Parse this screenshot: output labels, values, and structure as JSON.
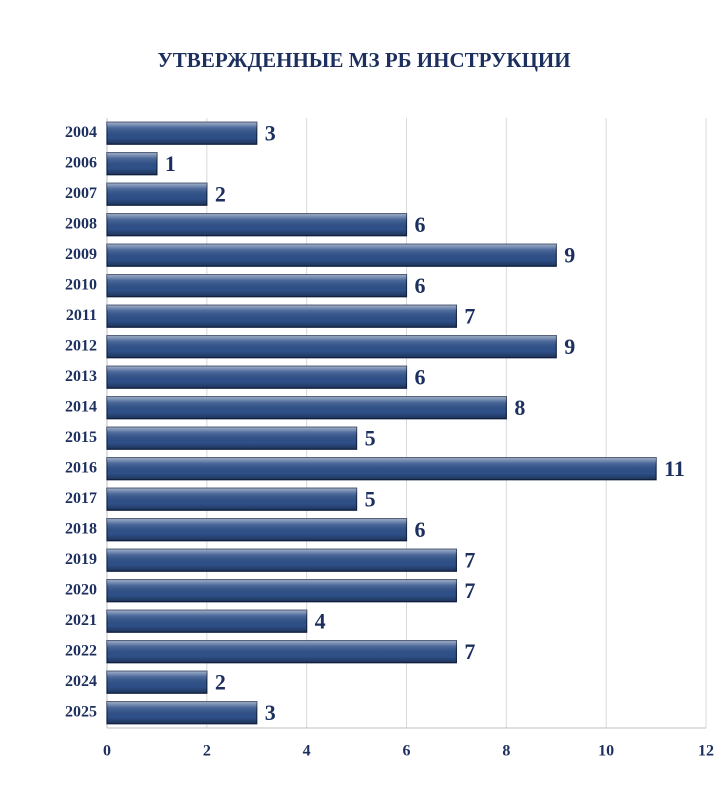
{
  "chart_data": {
    "type": "bar",
    "orientation": "horizontal",
    "title": "УТВЕРЖДЕННЫЕ МЗ РБ ИНСТРУКЦИИ",
    "categories": [
      "2004",
      "2006",
      "2007",
      "2008",
      "2009",
      "2010",
      "2011",
      "2012",
      "2013",
      "2014",
      "2015",
      "2016",
      "2017",
      "2018",
      "2019",
      "2020",
      "2021",
      "2022",
      "2024",
      "2025"
    ],
    "values": [
      3,
      1,
      2,
      6,
      9,
      6,
      7,
      9,
      6,
      8,
      5,
      11,
      5,
      6,
      7,
      7,
      4,
      7,
      2,
      3
    ],
    "color": "#2e5089",
    "xlim": [
      0,
      12
    ],
    "xticks": [
      0,
      2,
      4,
      6,
      8,
      10,
      12
    ],
    "grid": true
  }
}
